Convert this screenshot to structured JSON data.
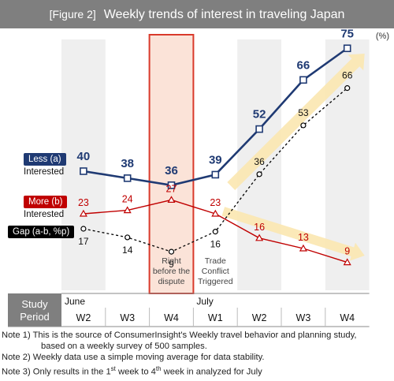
{
  "figure": {
    "label": "[Figure 2]",
    "title": "Weekly trends of interest in traveling Japan",
    "unit": "(%)"
  },
  "chart_data": {
    "type": "line",
    "categories": [
      "W2",
      "W3",
      "W4",
      "W1",
      "W2",
      "W3",
      "W4"
    ],
    "month_labels": [
      {
        "text": "June",
        "at_index": 0
      },
      {
        "text": "July",
        "at_index": 3
      }
    ],
    "period_label": "Study Period",
    "series": [
      {
        "name": "Less (a)",
        "name_line2": "Interested",
        "key": "less",
        "color": "#1f3a73",
        "values": [
          40,
          38,
          36,
          39,
          52,
          66,
          75
        ]
      },
      {
        "name": "More (b)",
        "name_line2": "Interested",
        "key": "more",
        "color": "#c00000",
        "values": [
          23,
          24,
          27,
          23,
          16,
          13,
          9
        ]
      },
      {
        "name": "Gap (a-b, %p)",
        "key": "gap",
        "color": "#000000",
        "values": [
          17,
          14,
          9,
          16,
          36,
          53,
          66
        ]
      }
    ],
    "highlight_index": 2,
    "annotations": [
      {
        "index": 2,
        "text": [
          "Right",
          "before the",
          "dispute"
        ]
      },
      {
        "index": 3,
        "text": [
          "Trade",
          "Conflict",
          "Triggered"
        ]
      }
    ],
    "alternate_column_shading": true,
    "legend": "left"
  },
  "notes": [
    {
      "prefix": "Note 1) ",
      "text": "This is the source of ConsumerInsight's Weekly travel behavior and planning study,"
    },
    {
      "prefix": "",
      "text": "based on a weekly survey of 500 samples.",
      "indent": true
    },
    {
      "prefix": "Note 2) ",
      "text": "Weekly data use a simple moving average for data stability."
    },
    {
      "prefix": "Note 3) ",
      "text_parts": [
        "Only results in the 1",
        "st",
        " week to 4",
        "th",
        " week in analyzed for July"
      ]
    }
  ]
}
